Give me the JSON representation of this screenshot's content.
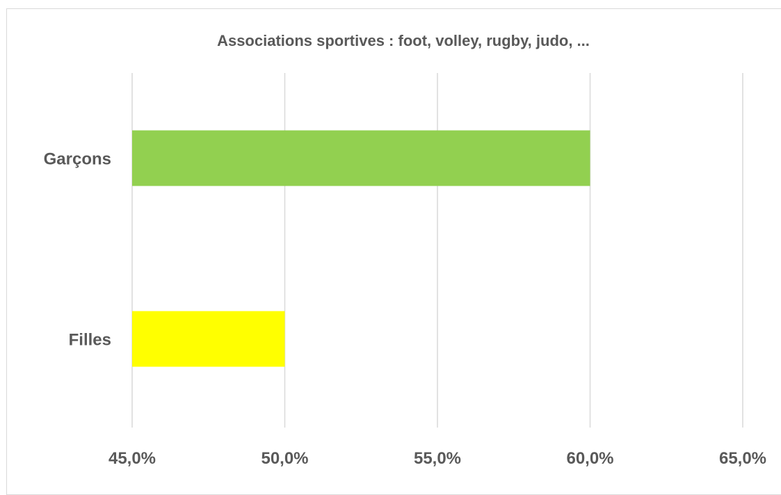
{
  "chart_data": {
    "type": "bar",
    "orientation": "horizontal",
    "title": "Associations sportives : foot, volley, rugby, judo, ...",
    "categories": [
      "Garçons",
      "Filles"
    ],
    "values": [
      60.0,
      50.0
    ],
    "colors": [
      "#92d050",
      "#ffff00"
    ],
    "xlim": [
      45,
      65
    ],
    "x_ticks": [
      45,
      50,
      55,
      60,
      65
    ],
    "x_tick_labels": [
      "45,0%",
      "50,0%",
      "55,0%",
      "60,0%",
      "65,0%"
    ],
    "grid": true,
    "legend": "none",
    "xlabel": "",
    "ylabel": ""
  }
}
